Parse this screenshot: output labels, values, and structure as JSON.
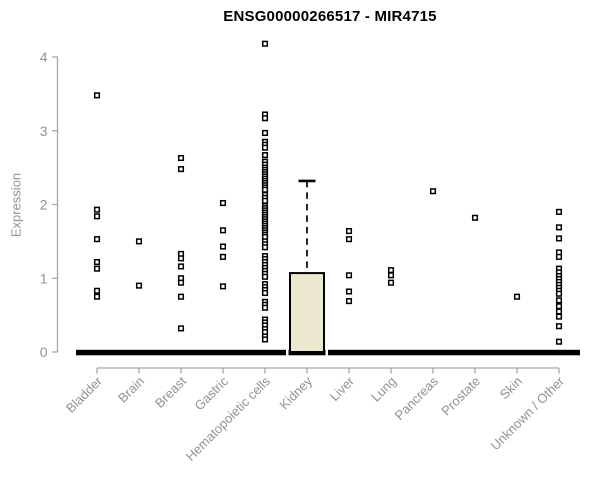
{
  "title": "ENSG00000266517 - MIR4715",
  "y_axis": {
    "label": "Expression",
    "tick_labels": [
      "0",
      "1",
      "2",
      "3",
      "4"
    ]
  },
  "colors": {
    "background": "#ffffff",
    "title_text": "#000000",
    "axis_line": "#a6a6a6",
    "axis_text": "#929292",
    "marker_stroke": "#000000",
    "marker_fill": "#ffffff",
    "zero_bar": "#000000",
    "box_fill": "#ece8cf",
    "box_stroke": "#000000"
  },
  "chart_data": {
    "type": "scatter",
    "variant": "strip-chart-with-boxplot",
    "title": "ENSG00000266517 - MIR4715",
    "xlabel": "",
    "ylabel": "Expression",
    "ylim": [
      0,
      4
    ],
    "yticks": [
      0,
      1,
      2,
      3,
      4
    ],
    "grid": false,
    "legend": null,
    "categories": [
      "Bladder",
      "Brain",
      "Breast",
      "Gastric",
      "Hematopoietic cells",
      "Kidney",
      "Liver",
      "Lung",
      "Pancreas",
      "Prostate",
      "Skin",
      "Unknown / Other"
    ],
    "zero_bar_all_categories": true,
    "series": [
      {
        "name": "Bladder",
        "values": [
          3.48,
          1.93,
          1.84,
          1.53,
          1.22,
          1.13,
          0.83,
          0.75
        ]
      },
      {
        "name": "Brain",
        "values": [
          1.5,
          0.9
        ]
      },
      {
        "name": "Breast",
        "values": [
          2.63,
          2.48,
          1.33,
          1.27,
          1.16,
          1.0,
          0.94,
          0.75,
          0.32
        ]
      },
      {
        "name": "Gastric",
        "values": [
          2.02,
          1.65,
          1.43,
          1.29,
          0.89
        ]
      },
      {
        "name": "Hematopoietic cells",
        "values": [
          4.18,
          3.22,
          3.17,
          2.97,
          2.85,
          2.81,
          2.77,
          2.67,
          2.58,
          2.54,
          2.5,
          2.47,
          2.44,
          2.41,
          2.38,
          2.35,
          2.32,
          2.29,
          2.26,
          2.23,
          2.2,
          2.13,
          2.09,
          2.05,
          1.98,
          1.95,
          1.92,
          1.89,
          1.86,
          1.83,
          1.8,
          1.77,
          1.74,
          1.71,
          1.68,
          1.65,
          1.62,
          1.59,
          1.56,
          1.5,
          1.46,
          1.42,
          1.3,
          1.26,
          1.22,
          1.18,
          1.14,
          1.1,
          1.06,
          1.02,
          0.92,
          0.88,
          0.84,
          0.8,
          0.68,
          0.64,
          0.6,
          0.44,
          0.4,
          0.36,
          0.31,
          0.27,
          0.21,
          0.17
        ]
      },
      {
        "name": "Kidney",
        "values": []
      },
      {
        "name": "Liver",
        "values": [
          1.64,
          1.53,
          1.04,
          0.82,
          0.69
        ]
      },
      {
        "name": "Lung",
        "values": [
          1.11,
          1.04,
          0.94
        ]
      },
      {
        "name": "Pancreas",
        "values": [
          2.18
        ]
      },
      {
        "name": "Prostate",
        "values": [
          1.82
        ]
      },
      {
        "name": "Skin",
        "values": [
          0.75
        ]
      },
      {
        "name": "Unknown / Other",
        "values": [
          1.9,
          1.69,
          1.54,
          1.35,
          1.29,
          1.13,
          1.08,
          1.03,
          0.99,
          0.95,
          0.91,
          0.87,
          0.83,
          0.79,
          0.7,
          0.62,
          0.55,
          0.48,
          0.35,
          0.14
        ]
      }
    ],
    "boxes": [
      {
        "category": "Kidney",
        "whisker_low": 0,
        "q1": 0,
        "median": 0,
        "q3": 1.07,
        "whisker_high": 2.32
      }
    ]
  }
}
